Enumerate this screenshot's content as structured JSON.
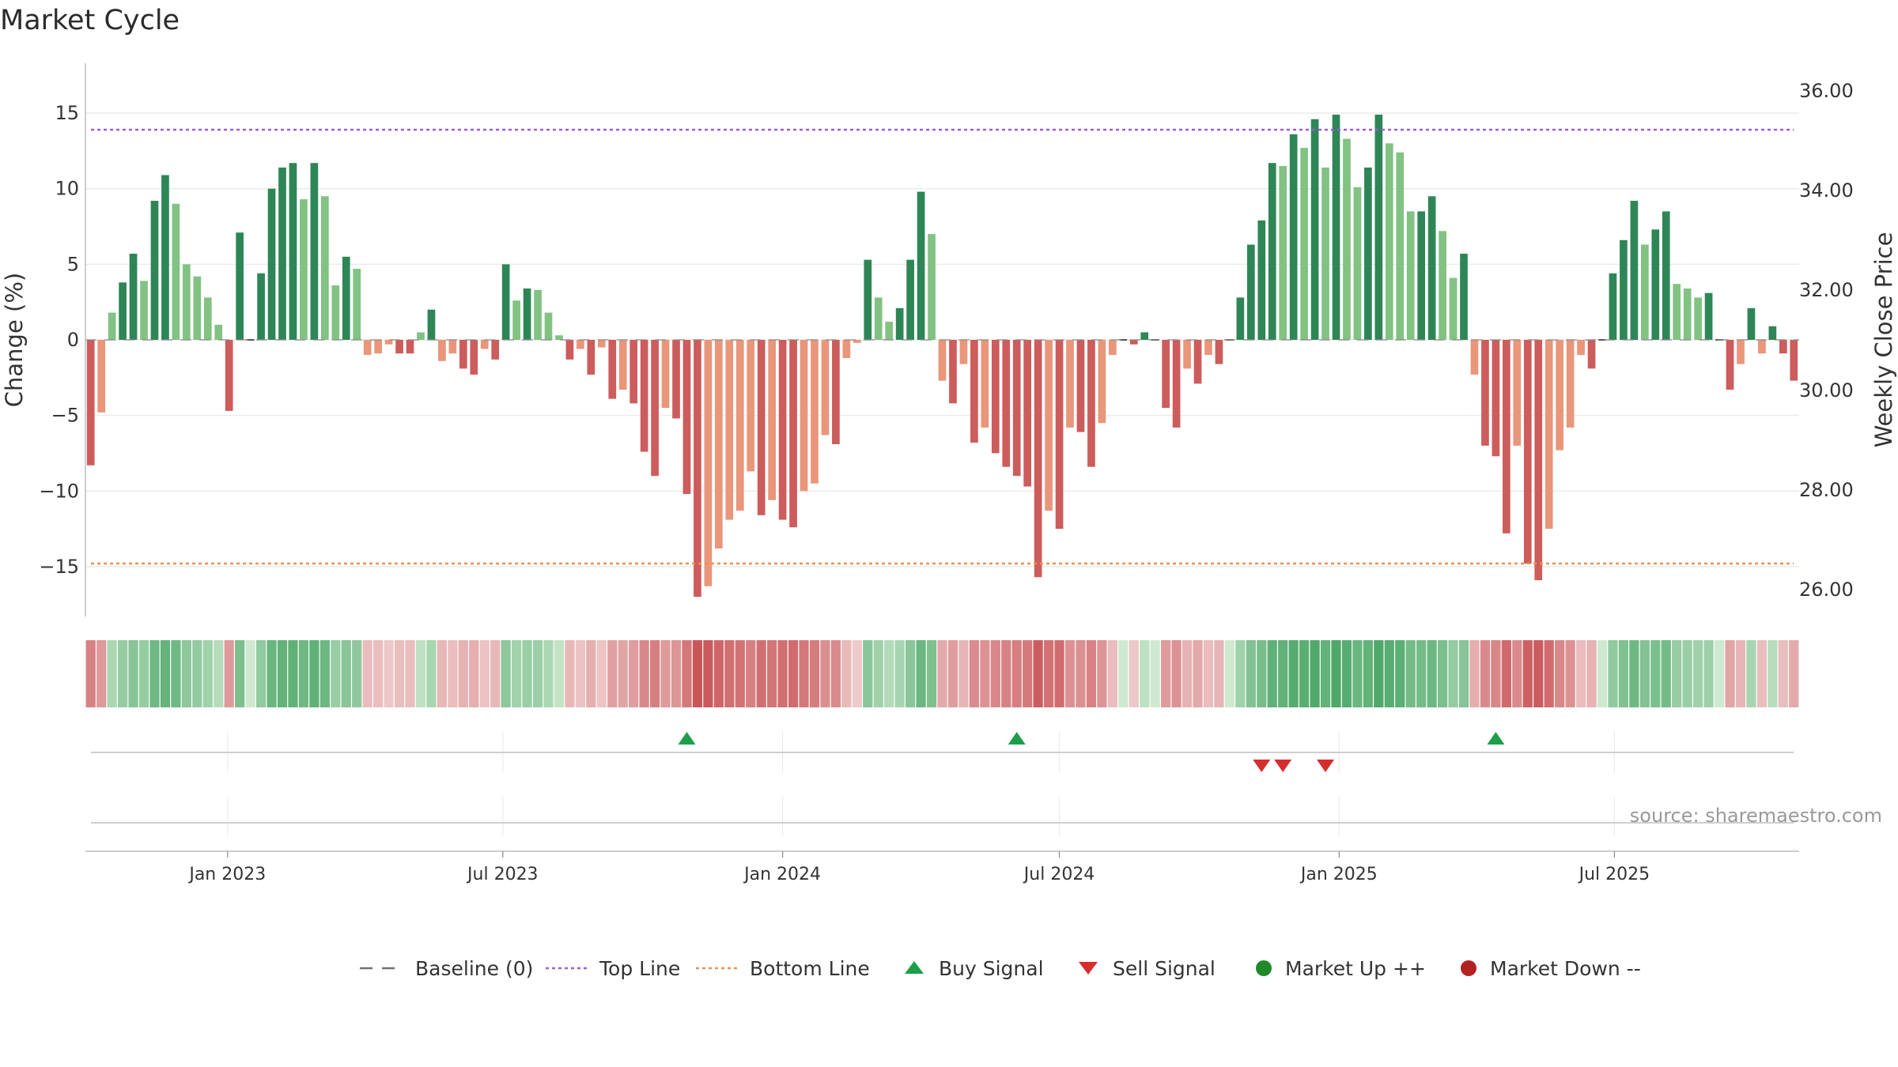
{
  "title": "Market Cycle",
  "source": "source: sharemaestro.com",
  "legend": [
    {
      "label": "Baseline (0)",
      "symbol": "dash",
      "color": "#707070"
    },
    {
      "label": "Top Line",
      "symbol": "dotted",
      "color": "#a05cd6"
    },
    {
      "label": "Bottom Line",
      "symbol": "dotted",
      "color": "#ef8f52"
    },
    {
      "label": "Buy Signal",
      "symbol": "triangle-up",
      "color": "#1e9e4a"
    },
    {
      "label": "Sell Signal",
      "symbol": "triangle-down",
      "color": "#d62d2d"
    },
    {
      "label": "Market Up ++",
      "symbol": "circle",
      "color": "#1e8a2a"
    },
    {
      "label": "Market Down --",
      "symbol": "circle",
      "color": "#b22222"
    }
  ],
  "colors": {
    "dark_green": "#2e8657",
    "light_green": "#82c283",
    "dark_red": "#cd5c5c",
    "light_red": "#e9967a",
    "top_line": "#a05cd6",
    "bottom_line": "#ef8f52",
    "buy": "#1e9e4a",
    "sell": "#d62d2d"
  },
  "chart_data": {
    "type": "bar",
    "title": "Market Cycle",
    "xlabel": "",
    "ylabel": "Change (%)",
    "ylabel_right": "Weekly Close Price",
    "ylim": [
      -18.3,
      18.3
    ],
    "yticks": [
      15,
      10,
      5,
      0,
      -5,
      -10,
      -15
    ],
    "ytick_labels": [
      "15",
      "10",
      "5",
      "0",
      "−5",
      "−10",
      "−15"
    ],
    "y2ticks": [
      "36.00",
      "34.00",
      "32.00",
      "30.00",
      "28.00",
      "26.00"
    ],
    "top_line": 13.9,
    "bottom_line": -14.8,
    "x_start": "2022-10-03",
    "xticks": [
      {
        "label": "Jan 2023",
        "date": "2023-01-01"
      },
      {
        "label": "Jul 2023",
        "date": "2023-07-01"
      },
      {
        "label": "Jan 2024",
        "date": "2024-01-01"
      },
      {
        "label": "Jul 2024",
        "date": "2024-07-01"
      },
      {
        "label": "Jan 2025",
        "date": "2025-01-01"
      },
      {
        "label": "Jul 2025",
        "date": "2025-07-01"
      }
    ],
    "grid": true,
    "legend_position": "bottom",
    "values": [
      -8.3,
      -4.8,
      1.8,
      3.8,
      5.7,
      3.9,
      9.2,
      10.9,
      9.0,
      5.0,
      4.2,
      2.8,
      1.0,
      -4.7,
      7.1,
      0,
      4.4,
      10.0,
      11.4,
      11.7,
      9.3,
      11.7,
      9.5,
      3.6,
      5.5,
      4.7,
      -1.0,
      -0.9,
      -0.3,
      -0.9,
      -0.9,
      0.5,
      2.0,
      -1.4,
      -0.9,
      -1.9,
      -2.3,
      -0.6,
      -1.3,
      5.0,
      2.6,
      3.4,
      3.3,
      1.8,
      0.3,
      -1.3,
      -0.6,
      -2.3,
      -0.5,
      -3.9,
      -3.3,
      -4.2,
      -7.4,
      -9.0,
      -4.5,
      -5.2,
      -10.2,
      -17.0,
      -16.3,
      -13.8,
      -11.9,
      -11.3,
      -8.7,
      -11.6,
      -10.6,
      -11.9,
      -12.4,
      -10.0,
      -9.5,
      -6.3,
      -6.9,
      -1.2,
      -0.2,
      5.3,
      2.8,
      1.2,
      2.1,
      5.3,
      9.8,
      7.0,
      -2.7,
      -4.2,
      -1.6,
      -6.8,
      -5.8,
      -7.5,
      -8.4,
      -9.0,
      -9.7,
      -15.7,
      -11.3,
      -12.5,
      -5.8,
      -6.1,
      -8.4,
      -5.5,
      -1.0,
      0,
      -0.3,
      0.5,
      0,
      -4.5,
      -5.8,
      -1.9,
      -2.9,
      -1.0,
      -1.6,
      0,
      2.8,
      6.3,
      7.9,
      11.7,
      11.5,
      13.6,
      12.7,
      14.6,
      11.4,
      14.9,
      13.3,
      10.1,
      11.4,
      14.9,
      13.0,
      12.4,
      8.5,
      8.5,
      9.5,
      7.2,
      4.1,
      5.7,
      -2.3,
      -7.0,
      -7.7,
      -12.8,
      -7.0,
      -14.8,
      -15.9,
      -12.5,
      -7.3,
      -5.8,
      -1.0,
      -1.9,
      0,
      4.4,
      6.6,
      9.2,
      6.3,
      7.3,
      8.5,
      3.7,
      3.4,
      2.8,
      3.1,
      0,
      -3.3,
      -1.6,
      2.1,
      -0.9,
      0.9,
      -0.9,
      -2.7
    ],
    "buy_signals": [
      "2023-10-30",
      "2024-06-03",
      "2025-04-14"
    ],
    "sell_signals": [
      "2024-11-11",
      "2024-11-25",
      "2024-12-23"
    ]
  }
}
